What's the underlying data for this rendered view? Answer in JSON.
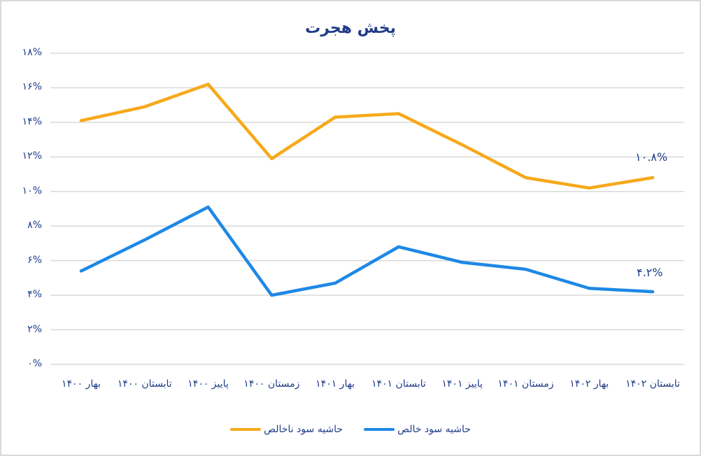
{
  "chart_data": {
    "type": "line",
    "title": "پخش هجرت",
    "xlabel": "",
    "ylabel": "",
    "ylim": [
      0,
      18
    ],
    "yticks": [
      "۰%",
      "۲%",
      "۴%",
      "۶%",
      "۸%",
      "۱۰%",
      "۱۲%",
      "۱۴%",
      "۱۶%",
      "۱۸%"
    ],
    "grid": true,
    "legend_position": "bottom",
    "categories": [
      "بهار ۱۴۰۰",
      "تابستان ۱۴۰۰",
      "پاییز ۱۴۰۰",
      "زمستان ۱۴۰۰",
      "بهار ۱۴۰۱",
      "تابستان ۱۴۰۱",
      "پاییز ۱۴۰۱",
      "زمستان ۱۴۰۱",
      "بهار ۱۴۰۲",
      "تابستان ۱۴۰۲"
    ],
    "series": [
      {
        "name": "حاشیه سود ناخالص",
        "color": "#F7A91B",
        "values": [
          14.1,
          14.9,
          16.2,
          11.9,
          14.3,
          14.5,
          12.7,
          10.8,
          10.2,
          10.8
        ],
        "last_label": "۱۰.۸%"
      },
      {
        "name": "حاشیه سود خالص",
        "color": "#1E88E5",
        "values": [
          5.4,
          7.2,
          9.1,
          4.0,
          4.7,
          6.8,
          5.9,
          5.5,
          4.4,
          4.2
        ],
        "last_label": "۴.۲%"
      }
    ]
  },
  "colors": {
    "text": "#1f3c88",
    "grid": "#d9d9d9",
    "gross": "#F7A91B",
    "net": "#1E88E5"
  }
}
